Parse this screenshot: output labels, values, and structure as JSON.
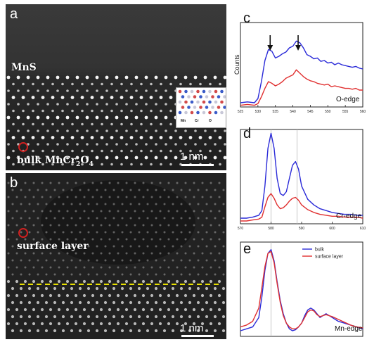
{
  "stem": {
    "a": {
      "letter": "a",
      "phase_label": "MnS",
      "spot_label": "bulk MnCr",
      "spot_sub1": "2",
      "spot_mid": "O",
      "spot_sub2": "4",
      "scale": "1 nm",
      "inset_labels": [
        "Mn",
        "Cr",
        "O"
      ]
    },
    "b": {
      "letter": "b",
      "spot_label": "surface layer",
      "scale": "1 nm"
    }
  },
  "colors": {
    "bulk": "#2a2ad8",
    "surface": "#e03030",
    "marker": "#d02020",
    "dashed": "#e8e000"
  },
  "chart_data": [
    {
      "type": "line",
      "panel": "c",
      "ylabel": "Counts",
      "annotation": "O-edge",
      "xlim": [
        525,
        560
      ],
      "tick_labels": [
        "525",
        "530",
        "535",
        "540",
        "545",
        "550",
        "555",
        "560"
      ],
      "arrows_at": [
        533.5,
        541.5
      ],
      "series": [
        {
          "key": "bulk",
          "x": [
            525,
            527,
            529,
            530,
            531,
            532,
            533,
            534,
            535,
            536,
            537,
            538,
            539,
            540,
            541,
            542,
            543,
            544,
            545,
            546,
            547,
            548,
            549,
            550,
            551,
            552,
            553,
            554,
            555,
            556,
            557,
            558,
            559,
            560
          ],
          "y": [
            0.05,
            0.06,
            0.05,
            0.1,
            0.3,
            0.55,
            0.68,
            0.66,
            0.58,
            0.6,
            0.63,
            0.65,
            0.7,
            0.72,
            0.78,
            0.76,
            0.7,
            0.62,
            0.6,
            0.57,
            0.58,
            0.54,
            0.55,
            0.52,
            0.53,
            0.5,
            0.52,
            0.5,
            0.49,
            0.48,
            0.47,
            0.48,
            0.46,
            0.45
          ]
        },
        {
          "key": "surface",
          "x": [
            525,
            527,
            529,
            530,
            531,
            532,
            533,
            534,
            535,
            536,
            537,
            538,
            539,
            540,
            541,
            542,
            543,
            544,
            545,
            546,
            547,
            548,
            549,
            550,
            551,
            552,
            553,
            554,
            555,
            556,
            557,
            558,
            559,
            560
          ],
          "y": [
            0.02,
            0.03,
            0.02,
            0.04,
            0.12,
            0.22,
            0.3,
            0.28,
            0.25,
            0.27,
            0.3,
            0.34,
            0.36,
            0.38,
            0.44,
            0.4,
            0.36,
            0.33,
            0.31,
            0.3,
            0.28,
            0.27,
            0.26,
            0.27,
            0.24,
            0.25,
            0.24,
            0.23,
            0.22,
            0.22,
            0.21,
            0.22,
            0.2,
            0.2
          ]
        }
      ]
    },
    {
      "type": "line",
      "panel": "d",
      "annotation": "Cr-edge",
      "xlim": [
        570,
        610
      ],
      "tick_labels": [
        "570",
        "580",
        "590",
        "600",
        "610"
      ],
      "vlines": [
        580,
        588.5
      ],
      "series": [
        {
          "key": "bulk",
          "x": [
            570,
            572,
            574,
            576,
            577,
            578,
            579,
            580,
            581,
            582,
            583,
            584,
            585,
            586,
            587,
            588,
            589,
            590,
            592,
            594,
            596,
            598,
            600,
            602,
            604,
            606,
            608,
            610
          ],
          "y": [
            0.06,
            0.06,
            0.07,
            0.09,
            0.14,
            0.4,
            0.8,
            0.96,
            0.8,
            0.48,
            0.32,
            0.3,
            0.34,
            0.48,
            0.62,
            0.66,
            0.58,
            0.4,
            0.26,
            0.2,
            0.16,
            0.14,
            0.12,
            0.11,
            0.1,
            0.1,
            0.09,
            0.09
          ]
        },
        {
          "key": "surface",
          "x": [
            570,
            572,
            574,
            576,
            577,
            578,
            579,
            580,
            581,
            582,
            583,
            584,
            585,
            586,
            587,
            588,
            589,
            590,
            592,
            594,
            596,
            598,
            600,
            602,
            604,
            606,
            608,
            610
          ],
          "y": [
            0.03,
            0.03,
            0.04,
            0.05,
            0.07,
            0.18,
            0.28,
            0.32,
            0.27,
            0.2,
            0.16,
            0.17,
            0.2,
            0.24,
            0.27,
            0.28,
            0.25,
            0.2,
            0.15,
            0.12,
            0.1,
            0.09,
            0.08,
            0.08,
            0.07,
            0.07,
            0.07,
            0.06
          ]
        }
      ]
    },
    {
      "type": "line",
      "panel": "e",
      "annotation": "Mn-edge",
      "xlim": [
        630,
        670
      ],
      "vlines": [
        640
      ],
      "legend": [
        "bulk",
        "surface layer"
      ],
      "series": [
        {
          "key": "bulk",
          "name": "bulk",
          "x": [
            630,
            632,
            634,
            636,
            637,
            638,
            639,
            640,
            641,
            642,
            643,
            644,
            645,
            646,
            647,
            648,
            649,
            650,
            651,
            652,
            653,
            654,
            655,
            656,
            657,
            658,
            660,
            662,
            664,
            666,
            668,
            670
          ],
          "y": [
            0.06,
            0.08,
            0.1,
            0.2,
            0.42,
            0.7,
            0.88,
            0.92,
            0.8,
            0.58,
            0.38,
            0.24,
            0.14,
            0.08,
            0.06,
            0.07,
            0.1,
            0.14,
            0.22,
            0.28,
            0.3,
            0.28,
            0.24,
            0.2,
            0.22,
            0.24,
            0.2,
            0.16,
            0.14,
            0.12,
            0.1,
            0.08
          ]
        },
        {
          "key": "surface",
          "name": "surface layer",
          "x": [
            630,
            632,
            634,
            636,
            637,
            638,
            639,
            640,
            641,
            642,
            643,
            644,
            645,
            646,
            647,
            648,
            649,
            650,
            651,
            652,
            653,
            654,
            655,
            656,
            657,
            658,
            660,
            662,
            664,
            666,
            668,
            670
          ],
          "y": [
            0.1,
            0.12,
            0.16,
            0.3,
            0.52,
            0.74,
            0.88,
            0.9,
            0.78,
            0.56,
            0.36,
            0.22,
            0.14,
            0.1,
            0.08,
            0.08,
            0.1,
            0.14,
            0.2,
            0.26,
            0.28,
            0.27,
            0.23,
            0.21,
            0.22,
            0.23,
            0.21,
            0.18,
            0.15,
            0.12,
            0.1,
            0.09
          ]
        }
      ]
    }
  ]
}
